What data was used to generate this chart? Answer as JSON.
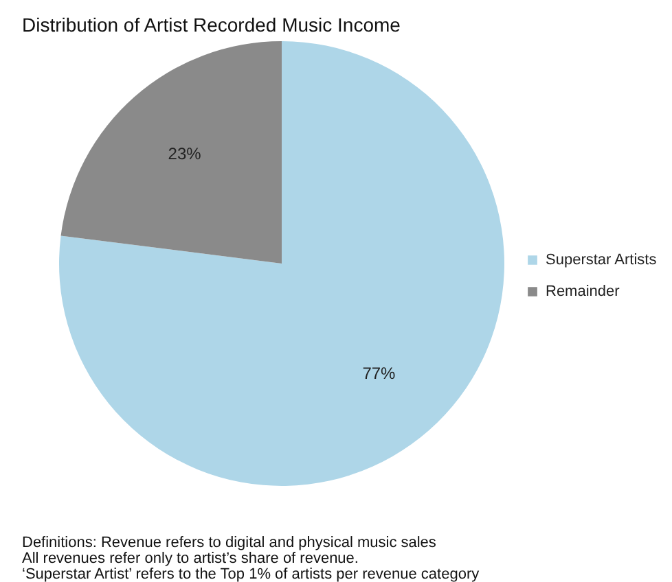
{
  "chart_data": {
    "type": "pie",
    "title": "Distribution of Artist Recorded Music Income",
    "categories": [
      "Superstar Artists",
      "Remainder"
    ],
    "values": [
      77,
      23
    ],
    "colors": [
      "#aed6e8",
      "#8a8a8a"
    ],
    "value_labels": [
      "77%",
      "23%"
    ],
    "legend": "right",
    "annotations": [
      "Definitions: Revenue refers to digital and physical music sales",
      "All revenues refer only to artist’s share of revenue.",
      "‘Superstar Artist’ refers to the Top 1% of artists per revenue category"
    ]
  }
}
